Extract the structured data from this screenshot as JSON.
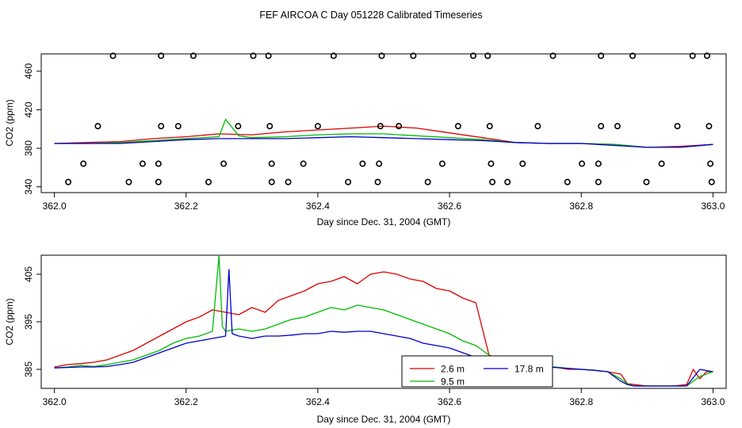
{
  "figure_title": "FEF AIRCOA C  Day 051228  Calibrated Timeseries",
  "chart_data": [
    {
      "type": "scatter+line",
      "panel": "top",
      "title": "",
      "xlabel": "Day since Dec. 31, 2004 (GMT)",
      "ylabel": "CO2 (ppm)",
      "xlim": [
        361.98,
        363.02
      ],
      "ylim": [
        334,
        478
      ],
      "xticks": [
        362.0,
        362.2,
        362.4,
        362.6,
        362.8,
        363.0
      ],
      "xtick_labels": [
        "362.0",
        "362.2",
        "362.4",
        "362.6",
        "362.8",
        "363.0"
      ],
      "yticks": [
        340,
        380,
        420,
        460
      ],
      "ytick_labels": [
        "340",
        "380",
        "420",
        "460"
      ],
      "calibration_points": [
        {
          "x": 362.089,
          "y": 476
        },
        {
          "x": 362.162,
          "y": 476
        },
        {
          "x": 362.211,
          "y": 476
        },
        {
          "x": 362.302,
          "y": 476
        },
        {
          "x": 362.325,
          "y": 476
        },
        {
          "x": 362.424,
          "y": 476
        },
        {
          "x": 362.497,
          "y": 476
        },
        {
          "x": 362.545,
          "y": 476
        },
        {
          "x": 362.636,
          "y": 476
        },
        {
          "x": 362.658,
          "y": 476
        },
        {
          "x": 362.757,
          "y": 476
        },
        {
          "x": 362.83,
          "y": 476
        },
        {
          "x": 362.878,
          "y": 476
        },
        {
          "x": 362.969,
          "y": 476
        },
        {
          "x": 362.991,
          "y": 476
        },
        {
          "x": 362.066,
          "y": 403
        },
        {
          "x": 362.162,
          "y": 403
        },
        {
          "x": 362.188,
          "y": 403
        },
        {
          "x": 362.279,
          "y": 403
        },
        {
          "x": 362.327,
          "y": 403
        },
        {
          "x": 362.4,
          "y": 403
        },
        {
          "x": 362.495,
          "y": 403
        },
        {
          "x": 362.523,
          "y": 403
        },
        {
          "x": 362.613,
          "y": 403
        },
        {
          "x": 362.661,
          "y": 403
        },
        {
          "x": 362.734,
          "y": 403
        },
        {
          "x": 362.83,
          "y": 403
        },
        {
          "x": 362.855,
          "y": 403
        },
        {
          "x": 362.946,
          "y": 403
        },
        {
          "x": 362.994,
          "y": 403
        },
        {
          "x": 362.044,
          "y": 364
        },
        {
          "x": 362.134,
          "y": 364
        },
        {
          "x": 362.158,
          "y": 364
        },
        {
          "x": 362.257,
          "y": 364
        },
        {
          "x": 362.33,
          "y": 364
        },
        {
          "x": 362.378,
          "y": 364
        },
        {
          "x": 362.468,
          "y": 364
        },
        {
          "x": 362.493,
          "y": 364
        },
        {
          "x": 362.589,
          "y": 364
        },
        {
          "x": 362.663,
          "y": 364
        },
        {
          "x": 362.711,
          "y": 364
        },
        {
          "x": 362.801,
          "y": 364
        },
        {
          "x": 362.826,
          "y": 364
        },
        {
          "x": 362.922,
          "y": 364
        },
        {
          "x": 362.996,
          "y": 364
        },
        {
          "x": 362.021,
          "y": 345
        },
        {
          "x": 362.113,
          "y": 345
        },
        {
          "x": 362.158,
          "y": 345
        },
        {
          "x": 362.234,
          "y": 345
        },
        {
          "x": 362.33,
          "y": 345
        },
        {
          "x": 362.355,
          "y": 345
        },
        {
          "x": 362.446,
          "y": 345
        },
        {
          "x": 362.491,
          "y": 345
        },
        {
          "x": 362.567,
          "y": 345
        },
        {
          "x": 362.665,
          "y": 345
        },
        {
          "x": 362.688,
          "y": 345
        },
        {
          "x": 362.779,
          "y": 345
        },
        {
          "x": 362.826,
          "y": 345
        },
        {
          "x": 362.899,
          "y": 345
        },
        {
          "x": 362.998,
          "y": 345
        }
      ],
      "series": [
        {
          "name": "2.6 m",
          "color": "#dd0000",
          "x": [
            362.0,
            362.05,
            362.1,
            362.15,
            362.2,
            362.25,
            362.3,
            362.35,
            362.4,
            362.45,
            362.5,
            362.55,
            362.6,
            362.65,
            362.7,
            362.75,
            362.8,
            362.85,
            362.9,
            362.95,
            363.0
          ],
          "y": [
            385,
            386,
            387,
            390,
            392,
            395,
            394,
            397,
            399,
            401,
            403,
            401,
            396,
            391,
            386,
            385,
            385,
            384,
            381,
            382,
            384
          ]
        },
        {
          "name": "9.5 m",
          "color": "#00bb00",
          "x": [
            362.0,
            362.05,
            362.1,
            362.15,
            362.2,
            362.25,
            362.26,
            362.28,
            362.3,
            362.35,
            362.4,
            362.45,
            362.5,
            362.55,
            362.6,
            362.65,
            362.7,
            362.75,
            362.8,
            362.85,
            362.9,
            362.95,
            363.0
          ],
          "y": [
            385,
            385,
            386,
            388,
            390,
            392,
            410,
            393,
            391,
            392,
            394,
            395,
            395,
            393,
            391,
            389,
            386,
            385,
            385,
            384,
            381,
            381,
            384
          ]
        },
        {
          "name": "17.8 m",
          "color": "#0000cc",
          "x": [
            362.0,
            362.05,
            362.1,
            362.15,
            362.2,
            362.25,
            362.3,
            362.35,
            362.4,
            362.45,
            362.5,
            362.55,
            362.6,
            362.65,
            362.7,
            362.75,
            362.8,
            362.85,
            362.9,
            362.95,
            363.0
          ],
          "y": [
            385,
            385,
            385,
            387,
            389,
            390,
            390,
            390,
            391,
            392,
            391,
            390,
            389,
            388,
            386,
            385,
            385,
            383,
            381,
            381,
            384
          ]
        }
      ]
    },
    {
      "type": "line",
      "panel": "bottom",
      "title": "",
      "xlabel": "Day since Dec. 31, 2004 (GMT)",
      "ylabel": "CO2 (ppm)",
      "xlim": [
        361.98,
        363.02
      ],
      "ylim": [
        381,
        409
      ],
      "xticks": [
        362.0,
        362.2,
        362.4,
        362.6,
        362.8,
        363.0
      ],
      "xtick_labels": [
        "362.0",
        "362.2",
        "362.4",
        "362.6",
        "362.8",
        "363.0"
      ],
      "yticks": [
        385,
        395,
        405
      ],
      "ytick_labels": [
        "385",
        "395",
        "405"
      ],
      "series": [
        {
          "name": "2.6 m",
          "color": "#dd0000",
          "x": [
            362.0,
            362.02,
            362.04,
            362.06,
            362.08,
            362.1,
            362.12,
            362.14,
            362.16,
            362.18,
            362.2,
            362.22,
            362.24,
            362.26,
            362.28,
            362.3,
            362.32,
            362.34,
            362.36,
            362.38,
            362.4,
            362.42,
            362.44,
            362.46,
            362.48,
            362.5,
            362.52,
            362.54,
            362.56,
            362.58,
            362.6,
            362.62,
            362.64,
            362.66,
            362.68,
            362.7,
            362.72,
            362.74,
            362.76,
            362.78,
            362.8,
            362.82,
            362.84,
            362.86,
            362.87,
            362.88,
            362.9,
            362.92,
            362.94,
            362.96,
            362.97,
            362.98,
            362.99,
            363.0
          ],
          "y": [
            385.5,
            386.0,
            386.2,
            386.5,
            387.0,
            388.0,
            389.0,
            390.5,
            392.0,
            393.5,
            395.0,
            396.0,
            397.5,
            397.0,
            396.5,
            398.0,
            397.0,
            399.5,
            400.5,
            401.5,
            403.0,
            403.5,
            404.5,
            403.0,
            405.0,
            405.5,
            405.0,
            404.0,
            403.5,
            402.0,
            401.5,
            400.0,
            399.0,
            388.0,
            387.0,
            386.5,
            386.0,
            385.5,
            385.5,
            385.0,
            385.0,
            384.8,
            384.5,
            384.0,
            382.0,
            381.8,
            381.5,
            381.5,
            381.5,
            381.8,
            385.0,
            383.0,
            384.5,
            384.5
          ]
        },
        {
          "name": "9.5 m",
          "color": "#00bb00",
          "x": [
            362.0,
            362.02,
            362.04,
            362.06,
            362.08,
            362.1,
            362.12,
            362.14,
            362.16,
            362.18,
            362.2,
            362.22,
            362.24,
            362.25,
            362.255,
            362.26,
            362.28,
            362.3,
            362.32,
            362.34,
            362.36,
            362.38,
            362.4,
            362.42,
            362.44,
            362.46,
            362.48,
            362.5,
            362.52,
            362.54,
            362.56,
            362.58,
            362.6,
            362.62,
            362.64,
            362.66,
            362.68,
            362.7,
            362.72,
            362.74,
            362.76,
            362.78,
            362.8,
            362.82,
            362.84,
            362.86,
            362.87,
            362.88,
            362.9,
            362.92,
            362.94,
            362.96,
            362.98,
            363.0
          ],
          "y": [
            385.3,
            385.5,
            385.8,
            385.6,
            386.0,
            386.5,
            387.0,
            388.0,
            389.0,
            390.5,
            391.5,
            392.0,
            393.0,
            409.0,
            394.0,
            393.0,
            393.5,
            393.0,
            393.5,
            394.5,
            395.5,
            396.0,
            397.0,
            398.0,
            397.5,
            398.5,
            398.0,
            397.5,
            396.5,
            395.5,
            394.5,
            393.5,
            392.5,
            391.0,
            390.0,
            388.0,
            387.0,
            386.5,
            386.0,
            385.5,
            385.5,
            385.2,
            385.0,
            384.8,
            384.5,
            383.0,
            382.0,
            381.5,
            381.5,
            381.5,
            381.5,
            381.5,
            383.5,
            384.5
          ]
        },
        {
          "name": "17.8 m",
          "color": "#0000cc",
          "x": [
            362.0,
            362.02,
            362.04,
            362.06,
            362.08,
            362.1,
            362.12,
            362.14,
            362.16,
            362.18,
            362.2,
            362.22,
            362.24,
            362.26,
            362.265,
            362.27,
            362.28,
            362.3,
            362.32,
            362.34,
            362.36,
            362.38,
            362.4,
            362.42,
            362.44,
            362.46,
            362.48,
            362.5,
            362.52,
            362.54,
            362.56,
            362.58,
            362.6,
            362.62,
            362.64,
            362.66,
            362.68,
            362.7,
            362.72,
            362.74,
            362.76,
            362.78,
            362.8,
            362.82,
            362.84,
            362.86,
            362.87,
            362.88,
            362.9,
            362.92,
            362.94,
            362.96,
            362.98,
            363.0
          ],
          "y": [
            385.3,
            385.4,
            385.5,
            385.5,
            385.6,
            386.0,
            386.5,
            387.5,
            388.5,
            389.5,
            390.5,
            391.0,
            391.5,
            392.0,
            406.0,
            392.5,
            392.0,
            391.5,
            392.0,
            392.0,
            392.2,
            392.5,
            392.5,
            393.0,
            392.8,
            393.0,
            393.0,
            392.5,
            392.0,
            391.5,
            390.5,
            390.0,
            389.5,
            388.5,
            387.5,
            387.0,
            386.5,
            386.0,
            385.8,
            385.5,
            385.4,
            385.2,
            385.0,
            384.8,
            384.5,
            382.5,
            381.8,
            381.5,
            381.5,
            381.5,
            381.5,
            381.5,
            385.0,
            384.5
          ]
        }
      ],
      "legend": {
        "position": "bottom-center",
        "entries": [
          "2.6 m",
          "9.5 m",
          "17.8 m"
        ]
      }
    }
  ]
}
